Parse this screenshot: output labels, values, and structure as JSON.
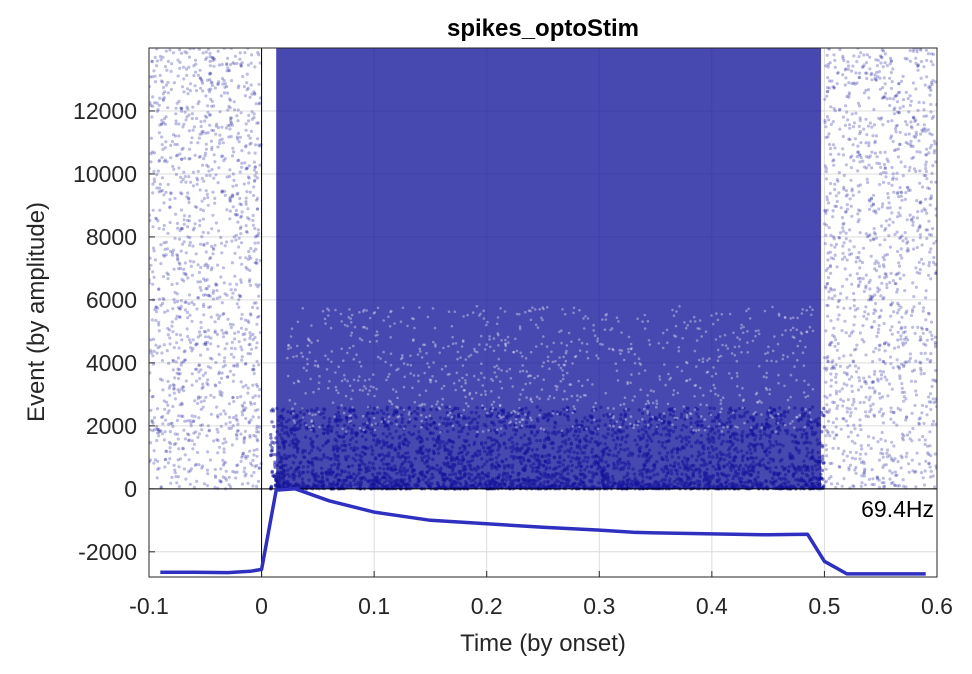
{
  "chart_data": {
    "type": "scatter",
    "title": "spikes_optoStim",
    "xlabel": "Time (by onset)",
    "ylabel": "Event (by amplitude)",
    "xlim": [
      -0.1,
      0.6
    ],
    "ylim": [
      -2800,
      14000
    ],
    "x_ticks": [
      "-0.1",
      "0",
      "0.1",
      "0.2",
      "0.3",
      "0.4",
      "0.5",
      "0.6"
    ],
    "y_ticks": [
      "-2000",
      "0",
      "2000",
      "4000",
      "6000",
      "8000",
      "10000",
      "12000"
    ],
    "grid": true,
    "raster": {
      "description_units": "events vs time",
      "n_events": 14000,
      "stim_onset": 0,
      "stim_offset": 0.5,
      "density_pre_stim": "sparse",
      "density_during_stim": "dense",
      "density_post_stim": "sparse",
      "color": "#14149b"
    },
    "rate_curve": {
      "label": "69.4Hz",
      "color": "#3030c0",
      "x": [
        -0.09,
        -0.06,
        -0.03,
        -0.01,
        0.0,
        0.013,
        0.03,
        0.06,
        0.1,
        0.15,
        0.2,
        0.25,
        0.3,
        0.33,
        0.35,
        0.4,
        0.45,
        0.485,
        0.5,
        0.52,
        0.55,
        0.59
      ],
      "y": [
        -2650,
        -2650,
        -2660,
        -2620,
        -2560,
        -40,
        0,
        -380,
        -740,
        -1000,
        -1110,
        -1220,
        -1310,
        -1380,
        -1400,
        -1430,
        -1460,
        -1440,
        -2300,
        -2700,
        -2700,
        -2700
      ]
    },
    "zero_line": {
      "y": 0,
      "x": 0
    }
  }
}
